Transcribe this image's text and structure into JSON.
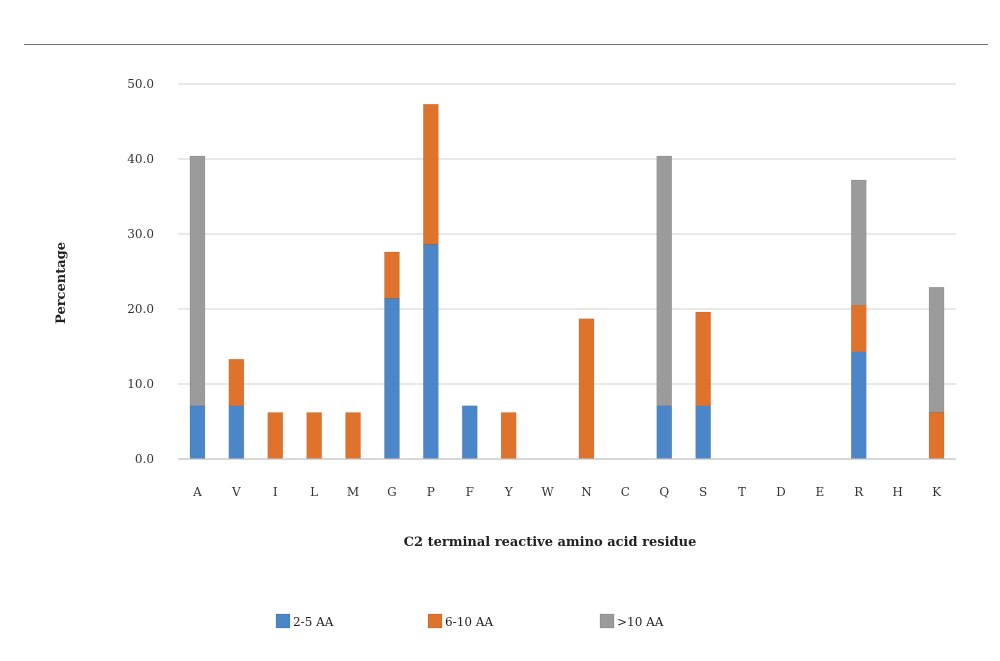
{
  "chart_data": {
    "type": "bar",
    "stacked": true,
    "title": "",
    "xlabel": "C2 terminal reactive amino acid residue",
    "ylabel": "Percentage",
    "ylim": [
      0,
      50
    ],
    "yticks": [
      "0.0",
      "10.0",
      "20.0",
      "30.0",
      "40.0",
      "50.0"
    ],
    "grid": true,
    "legend_position": "bottom",
    "categories": [
      "A",
      "V",
      "I",
      "L",
      "M",
      "G",
      "P",
      "F",
      "Y",
      "W",
      "N",
      "C",
      "Q",
      "S",
      "T",
      "D",
      "E",
      "R",
      "H",
      "K"
    ],
    "series": [
      {
        "name": "2-5 AA",
        "color": "#4a86c8",
        "values": [
          7.1,
          7.1,
          0,
          0,
          0,
          21.4,
          28.6,
          7.1,
          0,
          0,
          0,
          0,
          7.1,
          7.1,
          0,
          0,
          0,
          14.3,
          0,
          0
        ]
      },
      {
        "name": "6-10 AA",
        "color": "#e0732c",
        "values": [
          0,
          6.2,
          6.2,
          6.2,
          6.2,
          6.2,
          18.7,
          0,
          6.2,
          0,
          18.7,
          0,
          0,
          12.5,
          0,
          0,
          0,
          6.2,
          0,
          6.2
        ]
      },
      {
        "name": ">10 AA",
        "color": "#9b9b9b",
        "values": [
          33.3,
          0,
          0,
          0,
          0,
          0,
          0,
          0,
          0,
          0,
          0,
          0,
          33.3,
          0,
          0,
          0,
          0,
          16.7,
          0,
          16.7
        ]
      }
    ]
  }
}
